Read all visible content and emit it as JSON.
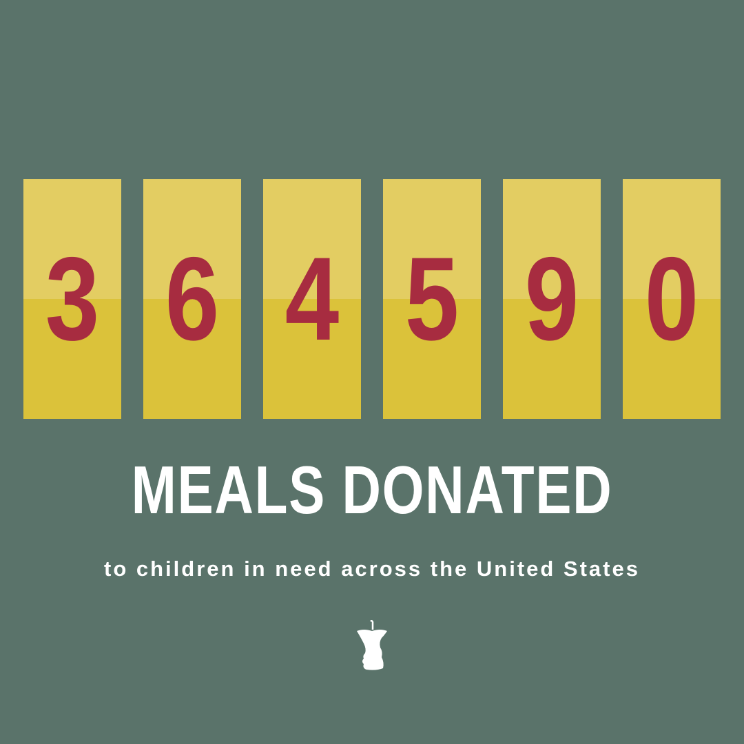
{
  "counter": {
    "digits": [
      "3",
      "6",
      "4",
      "5",
      "9",
      "0"
    ],
    "value": "364590"
  },
  "headline": "MEALS DONATED",
  "subtitle": "to children in need across the United States",
  "logo": {
    "icon": "apple-core-icon"
  },
  "colors": {
    "background": "#5a736a",
    "panel_top": "#e3cd62",
    "panel_bottom": "#dbc23a",
    "digit": "#a72c40",
    "text": "#ffffff"
  }
}
